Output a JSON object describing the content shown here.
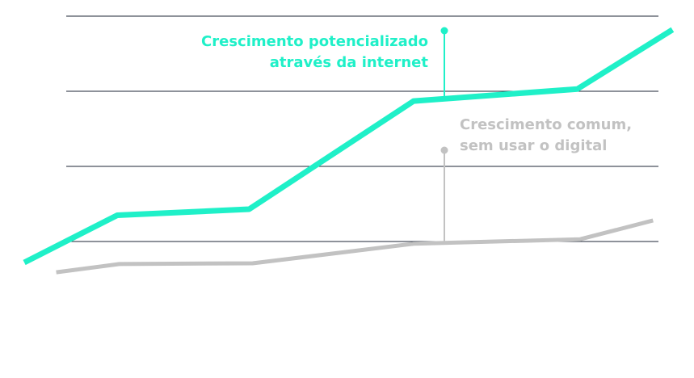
{
  "chart_data": {
    "type": "line",
    "xlim": [
      0,
      100
    ],
    "ylim": [
      0,
      4
    ],
    "yticks": [
      1,
      2,
      3,
      4
    ],
    "grid": true,
    "grid_color": "#1e2636",
    "series": [
      {
        "name": "Crescimento potencializado através da internet",
        "color": "#1ff0c8",
        "x": [
          3.5,
          16.9,
          35.9,
          59.6,
          83.2,
          96.9
        ],
        "values": [
          0.72,
          1.35,
          1.43,
          2.87,
          3.03,
          3.82
        ]
      },
      {
        "name": "Crescimento comum, sem usar o digital",
        "color": "#c2c2c2",
        "x": [
          8.1,
          17.2,
          36.4,
          59.6,
          83.6,
          94.1
        ],
        "values": [
          0.59,
          0.7,
          0.71,
          0.97,
          1.03,
          1.28
        ]
      }
    ],
    "annotations": [
      {
        "lines": [
          "Crescimento potencializado",
          "através da internet"
        ],
        "color": "#1ff0c8"
      },
      {
        "lines": [
          "Crescimento comum,",
          "sem usar o digital"
        ],
        "color": "#c2c2c2"
      }
    ]
  }
}
